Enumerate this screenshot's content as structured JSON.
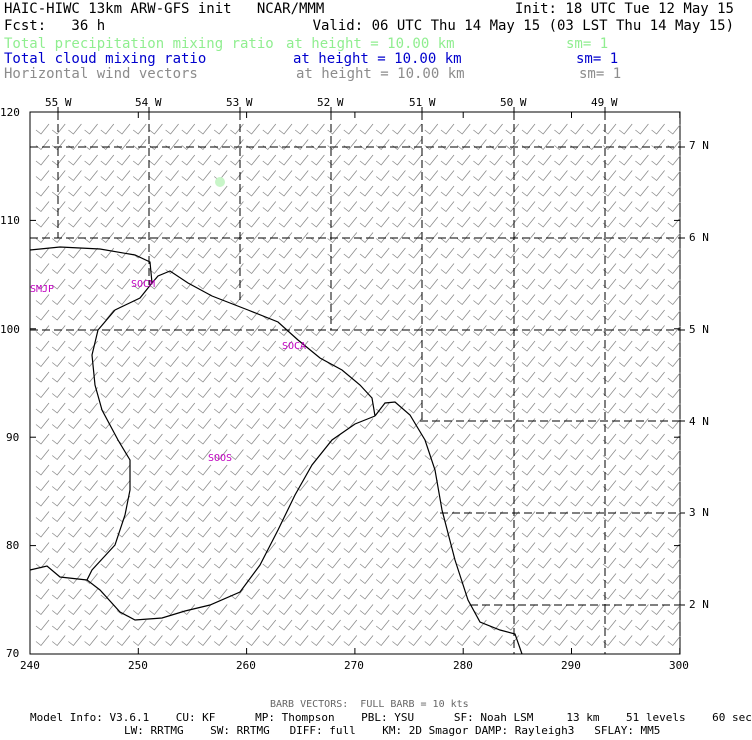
{
  "header": {
    "left1": "HAIC-HIWC 13km ARW-GFS init   NCAR/MMM",
    "right1": "Init: 18 UTC Tue 12 May 15",
    "fcst": "Fcst:   36 h",
    "valid": "Valid: 06 UTC Thu 14 May 15 (03 LST Thu 14 May 15)"
  },
  "fields": [
    {
      "name": "Total precipitation mixing ratio",
      "level": "at height = 10.00 km",
      "sm": "sm= 1",
      "color": "#90ee90"
    },
    {
      "name": "Total cloud mixing ratio",
      "level": "at height = 10.00 km",
      "sm": "sm= 1",
      "color": "#0000cd"
    },
    {
      "name": "Horizontal wind vectors",
      "level": "at height = 10.00 km",
      "sm": "sm= 1",
      "color": "#8c8c8c"
    }
  ],
  "map": {
    "lon_labels": [
      "55 W",
      "54 W",
      "53 W",
      "52 W",
      "51 W",
      "50 W",
      "49 W"
    ],
    "lat_labels": [
      "7 N",
      "6 N",
      "5 N",
      "4 N",
      "3 N",
      "2 N"
    ],
    "x_ticks": [
      "240",
      "250",
      "260",
      "270",
      "280",
      "290",
      "300"
    ],
    "y_ticks": [
      "70",
      "80",
      "90",
      "100",
      "110",
      "120"
    ],
    "stations": [
      "SMJP",
      "SOCM",
      "SOCA",
      "SOOS"
    ],
    "coast_color": "#000000",
    "station_color": "#c000c0",
    "barb_color": "#8c8c8c"
  },
  "footer": {
    "barb_note": "BARB VECTORS:  FULL BARB = 10 kts",
    "model1": "Model Info: V3.6.1    CU: KF      MP: Thompson    PBL: YSU      SF: Noah LSM     13 km    51 levels    60 sec",
    "model2": "LW: RRTMG    SW: RRTMG   DIFF: full    KM: 2D Smagor DAMP: Rayleigh3   SFLAY: MM5"
  }
}
